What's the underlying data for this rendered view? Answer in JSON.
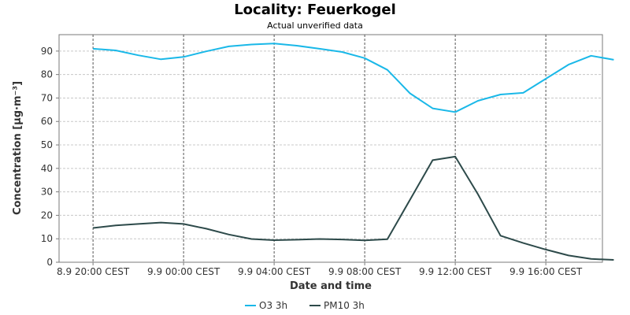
{
  "chart_data": {
    "type": "line",
    "title": "Locality: Feuerkogel",
    "subtitle": "Actual unverified data",
    "xlabel": "Date and time",
    "ylabel": "Concentration [µg·m⁻³]",
    "ylim": [
      0,
      97
    ],
    "yticks": [
      0,
      10,
      20,
      30,
      40,
      50,
      60,
      70,
      80,
      90
    ],
    "x_hours_range": [
      -1.5,
      22.5
    ],
    "xticks": [
      {
        "hour": 0,
        "label": "8.9 20:00 CEST"
      },
      {
        "hour": 4,
        "label": "9.9 00:00 CEST"
      },
      {
        "hour": 8,
        "label": "9.9 04:00 CEST"
      },
      {
        "hour": 12,
        "label": "9.9 08:00 CEST"
      },
      {
        "hour": 16,
        "label": "9.9 12:00 CEST"
      },
      {
        "hour": 20,
        "label": "9.9 16:00 CEST"
      }
    ],
    "x": [
      0,
      1,
      2,
      3,
      4,
      5,
      6,
      7,
      8,
      9,
      10,
      11,
      12,
      13,
      14,
      15,
      16,
      17,
      18,
      19,
      20,
      21,
      22,
      23
    ],
    "series": [
      {
        "name": "O3 3h",
        "color": "#1ab8e8",
        "values": [
          91,
          90.3,
          88.2,
          86.5,
          87.5,
          89.9,
          92,
          92.8,
          93.2,
          92.3,
          91,
          89.6,
          87,
          82,
          72,
          65.6,
          64,
          68.8,
          71.5,
          72.2,
          78.2,
          84.2,
          88,
          86.3
        ]
      },
      {
        "name": "PM10 3h",
        "color": "#2d4a4a",
        "values": [
          14.6,
          15.7,
          16.3,
          16.9,
          16.3,
          14.3,
          11.8,
          9.9,
          9.4,
          9.6,
          9.9,
          9.7,
          9.3,
          9.8,
          26.6,
          43.5,
          45,
          29,
          11.3,
          8.2,
          5.4,
          2.9,
          1.4,
          1
        ]
      }
    ],
    "grid": true,
    "legend_position": "bottom-center"
  }
}
